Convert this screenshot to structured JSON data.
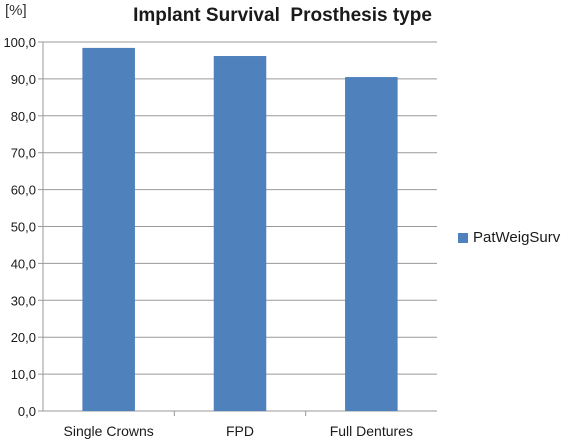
{
  "chart_data": {
    "type": "bar",
    "title": "Implant Survival  Prosthesis type",
    "ylabel": "[%]",
    "xlabel": "",
    "categories": [
      "Single Crowns",
      "FPD",
      "Full Dentures"
    ],
    "series": [
      {
        "name": "PatWeigSurv",
        "values": [
          98.4,
          96.2,
          90.5
        ],
        "color": "#4f81bd"
      }
    ],
    "ylim": [
      0,
      100
    ],
    "y_ticks": [
      "0,0",
      "10,0",
      "20,0",
      "30,0",
      "40,0",
      "50,0",
      "60,0",
      "70,0",
      "80,0",
      "90,0",
      "100,0"
    ],
    "grid": true,
    "legend": "right"
  }
}
